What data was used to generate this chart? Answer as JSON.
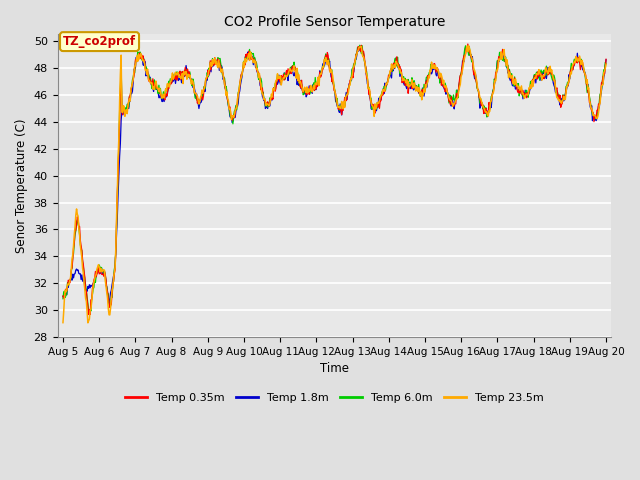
{
  "title": "CO2 Profile Sensor Temperature",
  "ylabel": "Senor Temperature (C)",
  "xlabel": "Time",
  "ylim": [
    28,
    50.5
  ],
  "annotation_text": "TZ_co2prof",
  "annotation_color": "#cc0000",
  "annotation_bg": "#ffffcc",
  "annotation_border": "#cc9900",
  "background_color": "#e0e0e0",
  "plot_bg": "#e8e8e8",
  "grid_color": "#ffffff",
  "colors": {
    "temp035": "#ff0000",
    "temp18": "#0000cc",
    "temp60": "#00cc00",
    "temp235": "#ffaa00"
  },
  "legend": [
    {
      "label": "Temp 0.35m",
      "color": "#ff0000"
    },
    {
      "label": "Temp 1.8m",
      "color": "#0000cc"
    },
    {
      "label": "Temp 6.0m",
      "color": "#00cc00"
    },
    {
      "label": "Temp 23.5m",
      "color": "#ffaa00"
    }
  ],
  "x_tick_labels": [
    "Aug 5",
    "Aug 6",
    "Aug 7",
    "Aug 8",
    "Aug 9",
    "Aug 10",
    "Aug 11",
    "Aug 12",
    "Aug 13",
    "Aug 14",
    "Aug 15",
    "Aug 16",
    "Aug 17",
    "Aug 18",
    "Aug 19",
    "Aug 20"
  ],
  "x_tick_positions": [
    5,
    6,
    7,
    8,
    9,
    10,
    11,
    12,
    13,
    14,
    15,
    16,
    17,
    18,
    19,
    20
  ],
  "xlim": [
    4.85,
    20.15
  ]
}
